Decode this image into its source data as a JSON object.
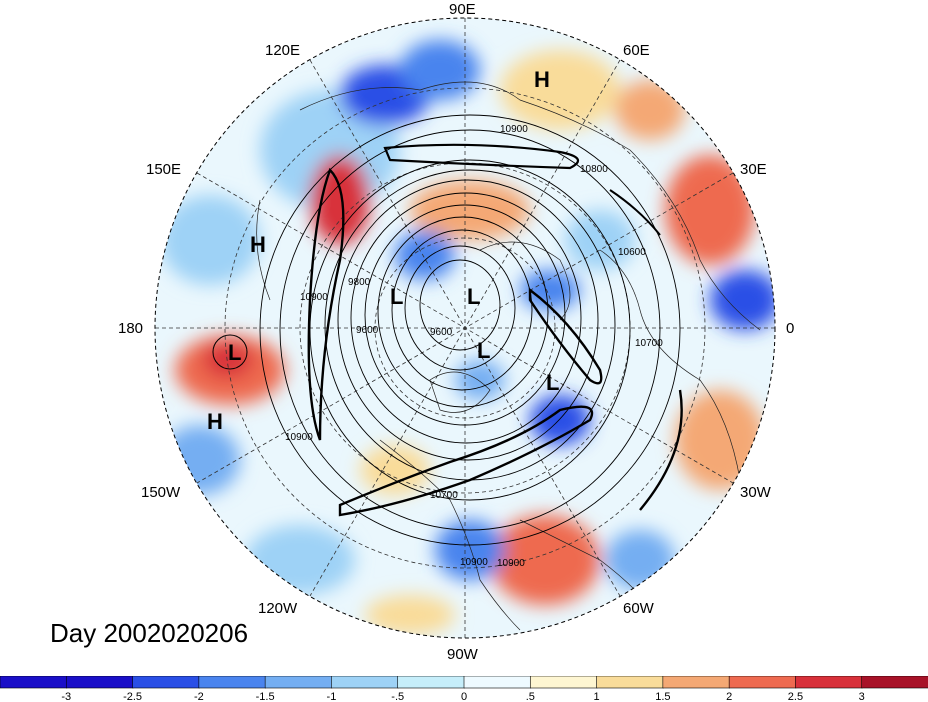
{
  "title": "Day 2002020206",
  "longitude_labels": [
    "90E",
    "60E",
    "30E",
    "0",
    "30W",
    "60W",
    "90W",
    "120W",
    "150W",
    "180",
    "150E",
    "120E"
  ],
  "pressure_systems": [
    {
      "type": "H",
      "name": "h-siberia"
    },
    {
      "type": "H",
      "name": "h-pacific-west"
    },
    {
      "type": "H",
      "name": "h-pacific-south"
    },
    {
      "type": "L",
      "name": "l-pacific"
    },
    {
      "type": "L",
      "name": "l-arctic-1"
    },
    {
      "type": "L",
      "name": "l-arctic-2"
    },
    {
      "type": "L",
      "name": "l-arctic-3"
    },
    {
      "type": "L",
      "name": "l-greenland"
    }
  ],
  "contour_labels": [
    "10900",
    "10800",
    "10600",
    "10700",
    "10900",
    "9800",
    "9600",
    "9600",
    "10900",
    "10900",
    "10700",
    "10900"
  ],
  "colorbar": {
    "levels": [
      "-3",
      "-2.5",
      "-2",
      "-1.5",
      "-1",
      "-.5",
      "0",
      ".5",
      "1",
      "1.5",
      "2",
      "2.5",
      "3"
    ],
    "colors": [
      "#1a0fc8",
      "#2a4fe6",
      "#4a84ee",
      "#74aef2",
      "#9ed2f6",
      "#c6eefa",
      "#eefaff",
      "#fef6d2",
      "#f9dc9a",
      "#f4a874",
      "#ee6a50",
      "#d8303a",
      "#a81228"
    ]
  }
}
